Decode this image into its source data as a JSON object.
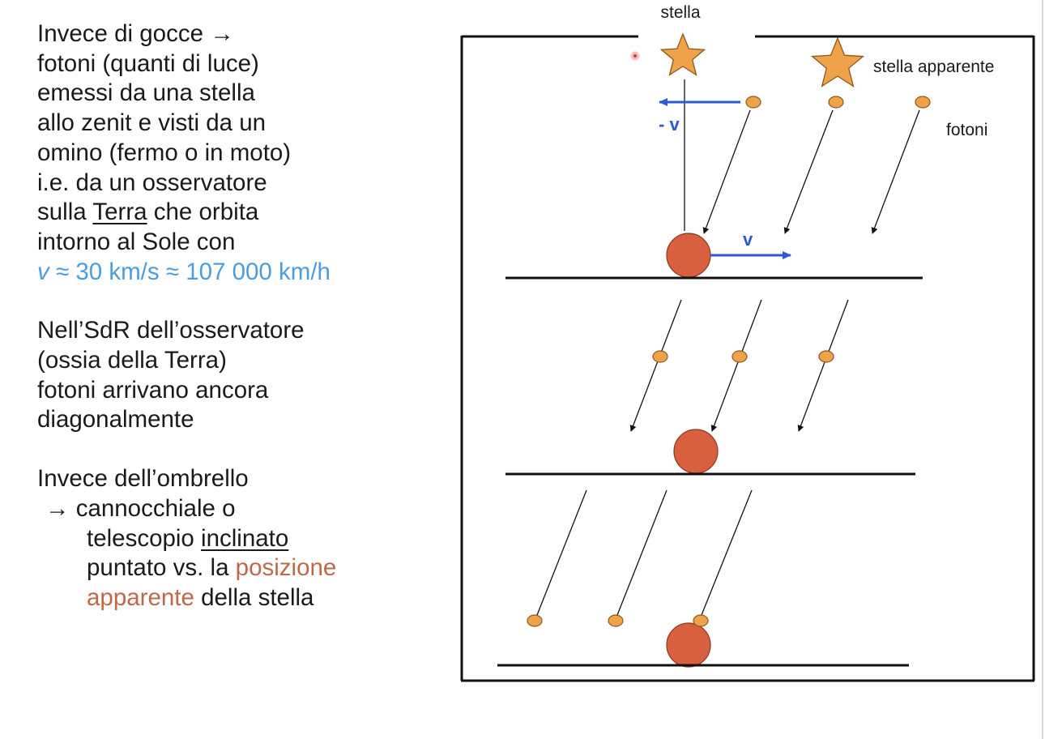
{
  "text": {
    "p1": {
      "l1_prefix": "Invece di gocce ",
      "arrow": "→",
      "l2": "fotoni (quanti di luce)",
      "l3": "emessi da una stella",
      "l4": "allo zenit e visti da un",
      "l5": "omino (fermo o in moto)",
      "l6": "i.e. da un osservatore",
      "l7_pre": "sulla ",
      "l7_ul": "Terra",
      "l7_post": " che orbita",
      "l8": "intorno al Sole con",
      "l9_var": "v",
      "l9_rest": " ≈ 30 km/s ≈ 107 000 km/h"
    },
    "p2": {
      "l1": "Nell’SdR dell’osservatore",
      "l2": "(ossia della Terra)",
      "l3": "fotoni arrivano ancora",
      "l4": "diagonalmente"
    },
    "p3": {
      "l1": "Invece dell’ombrello",
      "l2_arrow": "→",
      "l2_rest": " cannocchiale o",
      "l3_pre": "telescopio ",
      "l3_ul": "inclinato",
      "l4_pre": "puntato vs. la ",
      "l4_color": "posizione",
      "l5_color": "apparente",
      "l5_post": " della stella"
    }
  },
  "diagram": {
    "label_star": "stella",
    "label_apparent_star": "stella apparente",
    "label_photons": "fotoni",
    "label_minus_v": "- v",
    "label_v": "v",
    "colors": {
      "star_fill": "#f0a24a",
      "star_stroke": "#8a5a1e",
      "photon_fill": "#f0a24a",
      "observer_fill": "#d9603f",
      "arrow_blue": "#2a5ad8",
      "line": "#111111"
    }
  }
}
